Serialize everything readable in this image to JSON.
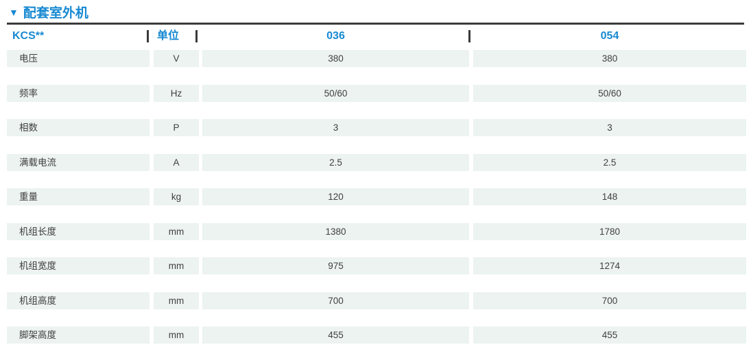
{
  "title": {
    "marker": "▼",
    "text": "配套室外机"
  },
  "colors": {
    "accent": "#1789D2",
    "row_bg": "#ECF3F1",
    "line": "#3A3A3A",
    "text": "#404040"
  },
  "table": {
    "header": {
      "model": "KCS**",
      "unit": "单位",
      "columns": [
        "036",
        "054"
      ]
    },
    "rows": [
      {
        "label": "电压",
        "unit": "V",
        "values": [
          "380",
          "380"
        ]
      },
      {
        "label": "频率",
        "unit": "Hz",
        "values": [
          "50/60",
          "50/60"
        ]
      },
      {
        "label": "相数",
        "unit": "P",
        "values": [
          "3",
          "3"
        ]
      },
      {
        "label": "满载电流",
        "unit": "A",
        "values": [
          "2.5",
          "2.5"
        ]
      },
      {
        "label": "重量",
        "unit": "kg",
        "values": [
          "120",
          "148"
        ]
      },
      {
        "label": "机组长度",
        "unit": "mm",
        "values": [
          "1380",
          "1780"
        ]
      },
      {
        "label": "机组宽度",
        "unit": "mm",
        "values": [
          "975",
          "1274"
        ]
      },
      {
        "label": "机组高度",
        "unit": "mm",
        "values": [
          "700",
          "700"
        ]
      },
      {
        "label": "脚架高度",
        "unit": "mm",
        "values": [
          "455",
          "455"
        ]
      }
    ]
  }
}
